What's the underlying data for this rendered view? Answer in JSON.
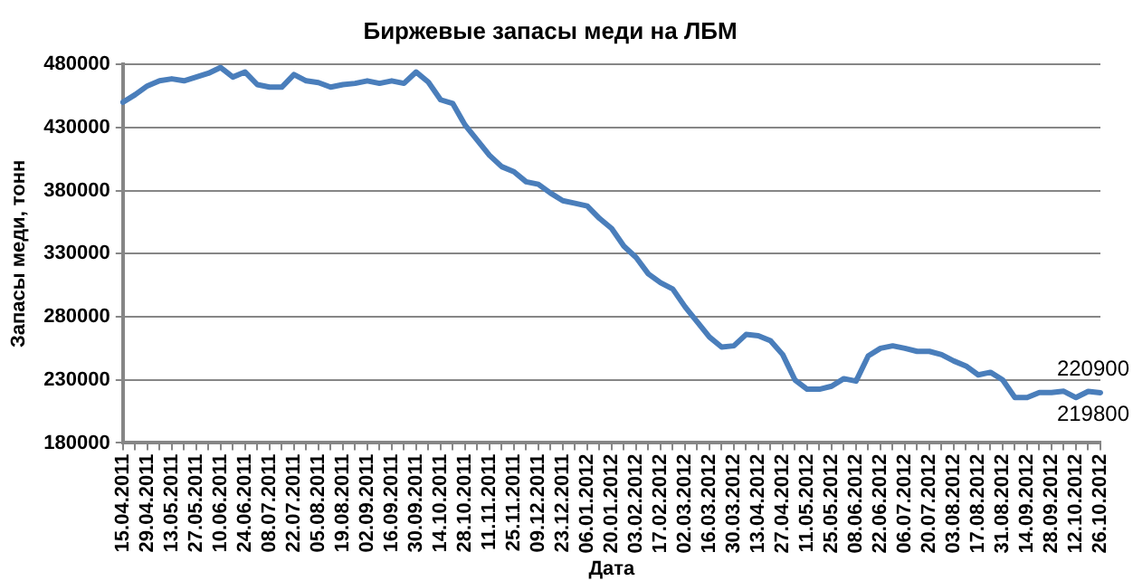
{
  "chart_data": {
    "type": "line",
    "title": "Биржевые запасы меди на ЛБМ",
    "xlabel": "Дата",
    "ylabel": "Запасы меди, тонн",
    "categories": [
      "15.04.2011",
      null,
      "29.04.2011",
      null,
      "13.05.2011",
      null,
      "27.05.2011",
      null,
      "10.06.2011",
      null,
      "24.06.2011",
      null,
      "08.07.2011",
      null,
      "22.07.2011",
      null,
      "05.08.2011",
      null,
      "19.08.2011",
      null,
      "02.09.2011",
      null,
      "16.09.2011",
      null,
      "30.09.2011",
      null,
      "14.10.2011",
      null,
      "28.10.2011",
      null,
      "11.11.2011",
      null,
      "25.11.2011",
      null,
      "09.12.2011",
      null,
      "23.12.2011",
      null,
      "06.01.2012",
      null,
      "20.01.2012",
      null,
      "03.02.2012",
      null,
      "17.02.2012",
      null,
      "02.03.2012",
      null,
      "16.03.2012",
      null,
      "30.03.2012",
      null,
      "13.04.2012",
      null,
      "27.04.2012",
      null,
      "11.05.2012",
      null,
      "25.05.2012",
      null,
      "08.06.2012",
      null,
      "22.06.2012",
      null,
      "06.07.2012",
      null,
      "20.07.2012",
      null,
      "03.08.2012",
      null,
      "17.08.2012",
      null,
      "31.08.2012",
      null,
      "14.09.2012",
      null,
      "28.09.2012",
      null,
      "12.10.2012",
      null,
      "26.10.2012"
    ],
    "series": [
      {
        "color": "#4a7ebb",
        "values": [
          450000,
          456000,
          463000,
          467000,
          468600,
          467000,
          470000,
          473000,
          477600,
          470000,
          474000,
          464000,
          462000,
          462000,
          472000,
          467000,
          465600,
          462000,
          464000,
          465000,
          467000,
          465000,
          467000,
          465000,
          474000,
          466000,
          452000,
          449000,
          432000,
          420000,
          408000,
          399000,
          395000,
          387000,
          385000,
          378000,
          372000,
          370000,
          367800,
          358000,
          350000,
          336000,
          327000,
          314000,
          307000,
          302000,
          288000,
          276000,
          264000,
          256000,
          257000,
          266000,
          265000,
          261000,
          250000,
          230000,
          222600,
          222600,
          225000,
          231000,
          229000,
          249000,
          255000,
          257000,
          255000,
          252600,
          252600,
          250000,
          245000,
          241000,
          234000,
          236000,
          230000,
          216000,
          216000,
          220000,
          220000,
          221000,
          216000,
          220900,
          219800
        ]
      }
    ],
    "ylim": [
      180000,
      480000
    ],
    "yticks": [
      180000,
      230000,
      280000,
      330000,
      380000,
      430000,
      480000
    ],
    "grid": "y",
    "legend": false,
    "marker": "none",
    "line_style": "solid",
    "annotations": [
      {
        "text": "220900",
        "y": 220900
      },
      {
        "text": "219800",
        "x": "26.10.2012",
        "y": 219800
      }
    ]
  }
}
